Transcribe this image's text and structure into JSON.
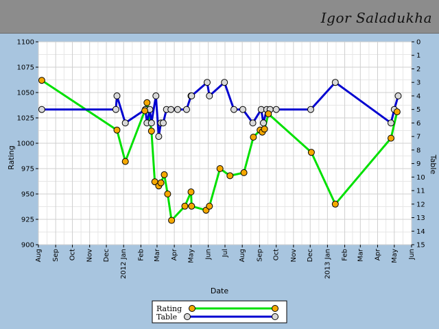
{
  "header": {
    "title": "Igor Saladukha"
  },
  "chart_data": {
    "type": "line",
    "xlabel": "Date",
    "ylabel": "Rating",
    "y2label": "Table",
    "ylim": [
      900,
      1100
    ],
    "y2lim": [
      0,
      15
    ],
    "y2_inverted": true,
    "xlim": [
      "2011-08-01",
      "2013-06-01"
    ],
    "x_tick_labels": [
      "Aug",
      "Sep",
      "Oct",
      "Nov",
      "Dec",
      "2012 Jan",
      "Feb",
      "Mar",
      "Apr",
      "May",
      "Jun",
      "Jul",
      "Aug",
      "Sep",
      "Oct",
      "Nov",
      "Dec",
      "2013 Jan",
      "Feb",
      "Mar",
      "Apr",
      "May",
      "Jun"
    ],
    "y_ticks": [
      900,
      925,
      950,
      975,
      1000,
      1025,
      1050,
      1075,
      1100
    ],
    "y2_ticks": [
      0,
      1,
      2,
      3,
      4,
      5,
      6,
      7,
      8,
      9,
      10,
      11,
      12,
      13,
      14,
      15
    ],
    "grid": true,
    "legend_position": "bottom",
    "colors": {
      "rating": "#00e000",
      "rating_marker": "#f5a800",
      "table": "#0000d0",
      "table_marker": "#d9d9d9"
    },
    "series": [
      {
        "name": "Rating",
        "axis": "left",
        "x": [
          "2011-08-07",
          "2011-12-20",
          "2012-01-04",
          "2012-02-08",
          "2012-02-12",
          "2012-02-20",
          "2012-02-26",
          "2012-03-04",
          "2012-03-08",
          "2012-03-14",
          "2012-03-20",
          "2012-03-27",
          "2012-04-20",
          "2012-05-01",
          "2012-05-02",
          "2012-05-28",
          "2012-06-03",
          "2012-06-22",
          "2012-07-10",
          "2012-08-04",
          "2012-08-21",
          "2012-09-02",
          "2012-09-06",
          "2012-09-10",
          "2012-09-17",
          "2012-12-03",
          "2013-01-15",
          "2013-04-25",
          "2013-05-06"
        ],
        "values": [
          1062,
          1013,
          982,
          1032,
          1040,
          1012,
          962,
          958,
          961,
          969,
          950,
          924,
          938,
          952,
          938,
          934,
          938,
          975,
          968,
          971,
          1006,
          1013,
          1011,
          1014,
          1029,
          991,
          940,
          1005,
          1031
        ]
      },
      {
        "name": "Table",
        "axis": "right",
        "x": [
          "2011-08-07",
          "2011-12-18",
          "2011-12-20",
          "2012-01-04",
          "2012-02-09",
          "2012-02-12",
          "2012-02-17",
          "2012-02-20",
          "2012-02-28",
          "2012-03-04",
          "2012-03-08",
          "2012-03-12",
          "2012-03-18",
          "2012-03-26",
          "2012-04-07",
          "2012-04-23",
          "2012-05-01",
          "2012-05-02",
          "2012-05-30",
          "2012-06-03",
          "2012-06-30",
          "2012-07-17",
          "2012-08-02",
          "2012-08-20",
          "2012-09-04",
          "2012-09-08",
          "2012-09-14",
          "2012-09-20",
          "2012-10-01",
          "2012-12-02",
          "2013-01-15",
          "2013-04-25",
          "2013-05-01",
          "2013-05-08"
        ],
        "values": [
          5,
          5,
          4,
          6,
          5,
          6,
          5,
          6,
          4,
          7,
          6,
          6,
          5,
          5,
          5,
          5,
          4,
          4,
          3,
          4,
          3,
          5,
          5,
          6,
          5,
          6,
          5,
          5,
          5,
          5,
          3,
          6,
          5,
          4
        ]
      }
    ]
  }
}
